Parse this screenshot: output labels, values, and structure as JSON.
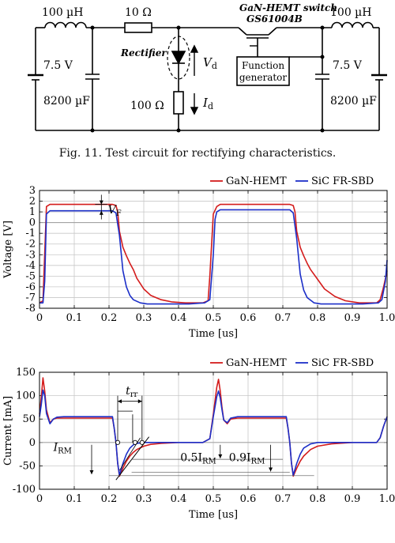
{
  "circuit": {
    "left_inductor": "100 µH",
    "series_resistor": "10 Ω",
    "switch_title": "GaN-HEMT switch",
    "switch_part": "GS61004B",
    "right_inductor": "100 µH",
    "left_voltage": "7.5 V",
    "left_capacitor": "8200 µF",
    "rectifier": "Rectifier",
    "vd": "V",
    "vd_sub": "d",
    "load_resistor": "100 Ω",
    "id": "I",
    "id_sub": "d",
    "function_generator_line1": "Function",
    "function_generator_line2": "generator",
    "right_voltage": "7.5 V",
    "right_capacitor": "8200 µF"
  },
  "figure_caption": "Fig. 11.  Test circuit for rectifying characteristics.",
  "chart_data": [
    {
      "type": "line",
      "xlabel": "Time [us]",
      "ylabel": "Voltage [V]",
      "xlim": [
        0,
        1.0
      ],
      "ylim": [
        -8,
        3
      ],
      "x_ticks": [
        "0",
        "0.1",
        "0.2",
        "0.3",
        "0.4",
        "0.5",
        "0.6",
        "0.7",
        "0.8",
        "0.9",
        "1.0"
      ],
      "y_ticks": [
        "3",
        "2",
        "1",
        "0",
        "-1",
        "-2",
        "-3",
        "-4",
        "-5",
        "-6",
        "-7",
        "-8"
      ],
      "grid": true,
      "legend": "top-right",
      "annotation": {
        "text": "V",
        "sub": "F"
      },
      "series": [
        {
          "name": "GaN-HEMT",
          "color": "#d41c1c",
          "x": [
            0,
            0.01,
            0.02,
            0.03,
            0.21,
            0.22,
            0.225,
            0.23,
            0.24,
            0.25,
            0.26,
            0.27,
            0.28,
            0.3,
            0.32,
            0.35,
            0.38,
            0.42,
            0.47,
            0.485,
            0.49,
            0.5,
            0.51,
            0.52,
            0.72,
            0.73,
            0.735,
            0.74,
            0.75,
            0.76,
            0.77,
            0.78,
            0.8,
            0.82,
            0.85,
            0.88,
            0.92,
            0.97,
            0.98,
            0.99,
            1.0
          ],
          "y": [
            -7.5,
            -7.3,
            1.5,
            1.7,
            1.7,
            1.6,
            1.0,
            -0.8,
            -2.3,
            -3.1,
            -3.8,
            -4.4,
            -5.2,
            -6.2,
            -6.8,
            -7.2,
            -7.4,
            -7.5,
            -7.5,
            -7.3,
            -5.0,
            0.8,
            1.5,
            1.7,
            1.7,
            1.6,
            1.0,
            -0.8,
            -2.3,
            -3.1,
            -3.8,
            -4.4,
            -5.3,
            -6.2,
            -6.9,
            -7.3,
            -7.5,
            -7.5,
            -7.2,
            -6.0,
            -4.5
          ]
        },
        {
          "name": "SiC FR-SBD",
          "color": "#1c2fc8",
          "x": [
            0,
            0.01,
            0.015,
            0.02,
            0.03,
            0.21,
            0.22,
            0.23,
            0.24,
            0.25,
            0.26,
            0.27,
            0.29,
            0.31,
            0.34,
            0.38,
            0.43,
            0.475,
            0.49,
            0.5,
            0.505,
            0.51,
            0.52,
            0.72,
            0.73,
            0.74,
            0.75,
            0.76,
            0.77,
            0.79,
            0.81,
            0.84,
            0.88,
            0.93,
            0.975,
            0.985,
            0.995,
            1.0
          ],
          "y": [
            -7.5,
            -7.5,
            -5.5,
            0.8,
            1.1,
            1.1,
            0.9,
            -1.2,
            -4.5,
            -6.0,
            -6.8,
            -7.2,
            -7.5,
            -7.6,
            -7.6,
            -7.6,
            -7.6,
            -7.5,
            -7.2,
            -3.0,
            0.3,
            1.0,
            1.2,
            1.2,
            0.9,
            -1.5,
            -4.8,
            -6.3,
            -7.0,
            -7.5,
            -7.6,
            -7.6,
            -7.6,
            -7.6,
            -7.5,
            -7.2,
            -5.5,
            -3.5
          ]
        }
      ]
    },
    {
      "type": "line",
      "xlabel": "Time [us]",
      "ylabel": "Current [mA]",
      "xlim": [
        0,
        1.0
      ],
      "ylim": [
        -100,
        150
      ],
      "x_ticks": [
        "0",
        "0.1",
        "0.2",
        "0.3",
        "0.4",
        "0.5",
        "0.6",
        "0.7",
        "0.8",
        "0.9",
        "1.0"
      ],
      "y_ticks": [
        "150",
        "100",
        "50",
        "0",
        "-50",
        "-100"
      ],
      "grid": true,
      "legend": "top-right",
      "annotations": [
        {
          "text": "t",
          "sub": "rr"
        },
        {
          "text": "I",
          "sub": "RM"
        },
        {
          "text": "0.5I",
          "sub": "RM"
        },
        {
          "text": "0.9I",
          "sub": "RM"
        }
      ],
      "series": [
        {
          "name": "GaN-HEMT",
          "color": "#d41c1c",
          "x": [
            0,
            0.005,
            0.01,
            0.015,
            0.02,
            0.03,
            0.04,
            0.05,
            0.07,
            0.1,
            0.15,
            0.21,
            0.215,
            0.22,
            0.225,
            0.23,
            0.24,
            0.25,
            0.26,
            0.27,
            0.28,
            0.3,
            0.32,
            0.35,
            0.4,
            0.47,
            0.49,
            0.5,
            0.51,
            0.515,
            0.52,
            0.525,
            0.53,
            0.54,
            0.55,
            0.57,
            0.6,
            0.65,
            0.71,
            0.715,
            0.72,
            0.725,
            0.73,
            0.74,
            0.75,
            0.76,
            0.78,
            0.8,
            0.84,
            0.9,
            0.97,
            0.98,
            0.99,
            1.0
          ],
          "y": [
            60,
            95,
            138,
            110,
            70,
            42,
            50,
            52,
            52,
            52,
            52,
            52,
            30,
            0,
            -45,
            -72,
            -55,
            -40,
            -29,
            -21,
            -15,
            -8,
            -4,
            -2,
            0,
            0,
            8,
            60,
            118,
            135,
            110,
            75,
            48,
            40,
            50,
            52,
            52,
            52,
            52,
            30,
            0,
            -45,
            -72,
            -55,
            -40,
            -29,
            -15,
            -8,
            -3,
            0,
            0,
            10,
            35,
            55
          ]
        },
        {
          "name": "SiC FR-SBD",
          "color": "#1c2fc8",
          "x": [
            0,
            0.005,
            0.01,
            0.015,
            0.02,
            0.03,
            0.04,
            0.05,
            0.07,
            0.1,
            0.15,
            0.21,
            0.215,
            0.22,
            0.225,
            0.23,
            0.24,
            0.25,
            0.26,
            0.27,
            0.28,
            0.3,
            0.32,
            0.35,
            0.4,
            0.47,
            0.49,
            0.5,
            0.51,
            0.515,
            0.52,
            0.525,
            0.53,
            0.54,
            0.55,
            0.57,
            0.6,
            0.65,
            0.71,
            0.715,
            0.72,
            0.725,
            0.73,
            0.74,
            0.75,
            0.76,
            0.78,
            0.8,
            0.84,
            0.9,
            0.97,
            0.98,
            0.99,
            1.0
          ],
          "y": [
            55,
            80,
            112,
            100,
            62,
            40,
            50,
            54,
            55,
            55,
            55,
            55,
            30,
            0,
            -45,
            -70,
            -45,
            -25,
            -12,
            -5,
            -2,
            0,
            0,
            0,
            0,
            0,
            8,
            55,
            98,
            110,
            95,
            70,
            48,
            42,
            52,
            55,
            55,
            55,
            55,
            30,
            0,
            -45,
            -70,
            -45,
            -25,
            -12,
            -3,
            0,
            0,
            0,
            0,
            10,
            35,
            55
          ]
        }
      ]
    }
  ]
}
